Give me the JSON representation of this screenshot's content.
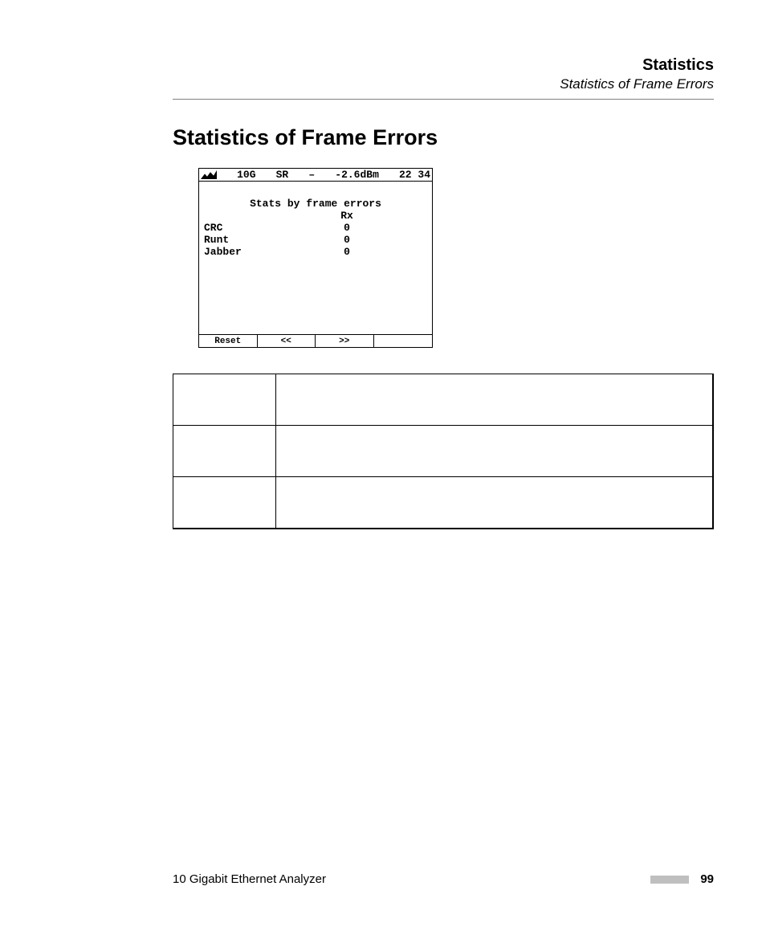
{
  "header": {
    "title": "Statistics",
    "subtitle": "Statistics of Frame Errors"
  },
  "section": {
    "title": "Statistics of Frame Errors"
  },
  "device_screen": {
    "topbar": {
      "speed": "10G",
      "mode": "SR",
      "dash": "–",
      "power": "-2.6dBm",
      "time": "22 34"
    },
    "body_title": "Stats by frame errors",
    "rx_header": "Rx",
    "rows": [
      {
        "label": "CRC",
        "value": "0"
      },
      {
        "label": "Runt",
        "value": "0"
      },
      {
        "label": "Jabber",
        "value": "0"
      }
    ],
    "bottombar": {
      "reset": "Reset",
      "prev": "<<",
      "next": ">>",
      "blank": ""
    }
  },
  "definitions": {
    "rows": [
      {
        "term": "",
        "desc": ""
      },
      {
        "term": "",
        "desc": ""
      },
      {
        "term": "",
        "desc": ""
      }
    ]
  },
  "footer": {
    "left": "10 Gigabit Ethernet Analyzer",
    "page": "99"
  }
}
